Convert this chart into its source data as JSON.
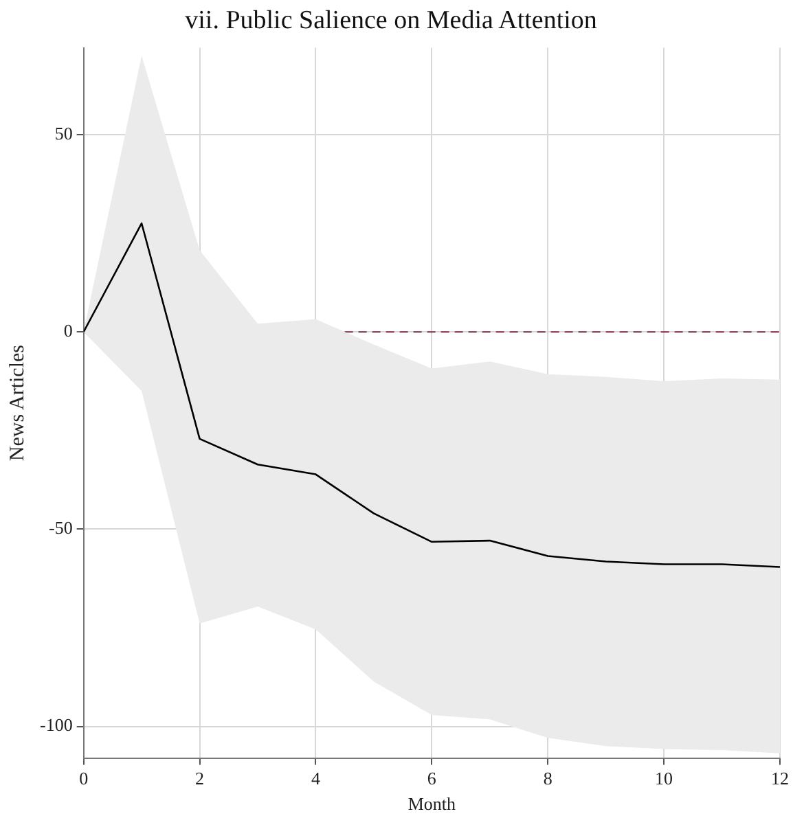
{
  "chart_data": {
    "type": "line",
    "title": "vii. Public Salience on Media Attention",
    "xlabel": "Month",
    "ylabel": "News Articles",
    "x": [
      0,
      1,
      2,
      3,
      4,
      5,
      6,
      7,
      8,
      9,
      10,
      11,
      12
    ],
    "series": [
      {
        "color": "#000000",
        "values": [
          0,
          27.5,
          -27.1,
          -33.6,
          -36.1,
          -46,
          -53.2,
          -52.9,
          -56.8,
          -58.2,
          -58.9,
          -58.9,
          -59.6
        ],
        "lower": [
          0,
          -15,
          -73.9,
          -69.6,
          -75.4,
          -88.6,
          -97.1,
          -98.2,
          -102.9,
          -105,
          -105.7,
          -106,
          -106.8
        ],
        "upper": [
          0,
          70,
          20.7,
          2.1,
          3.2,
          -3.2,
          -9.3,
          -7.5,
          -10.7,
          -11.4,
          -12.5,
          -11.8,
          -12.1
        ]
      }
    ],
    "xlim": [
      0,
      12
    ],
    "xticks": [
      0,
      2,
      4,
      6,
      8,
      10,
      12
    ],
    "ylim": [
      -108,
      72
    ],
    "yticks": [
      -100,
      -50,
      0,
      50
    ],
    "ref_lines": [
      {
        "axis": "y",
        "value": 0,
        "color": "#7b2c3e",
        "line_style": "dashed"
      }
    ],
    "grid": true,
    "legend": false,
    "marker": "none",
    "line_style": "solid"
  }
}
